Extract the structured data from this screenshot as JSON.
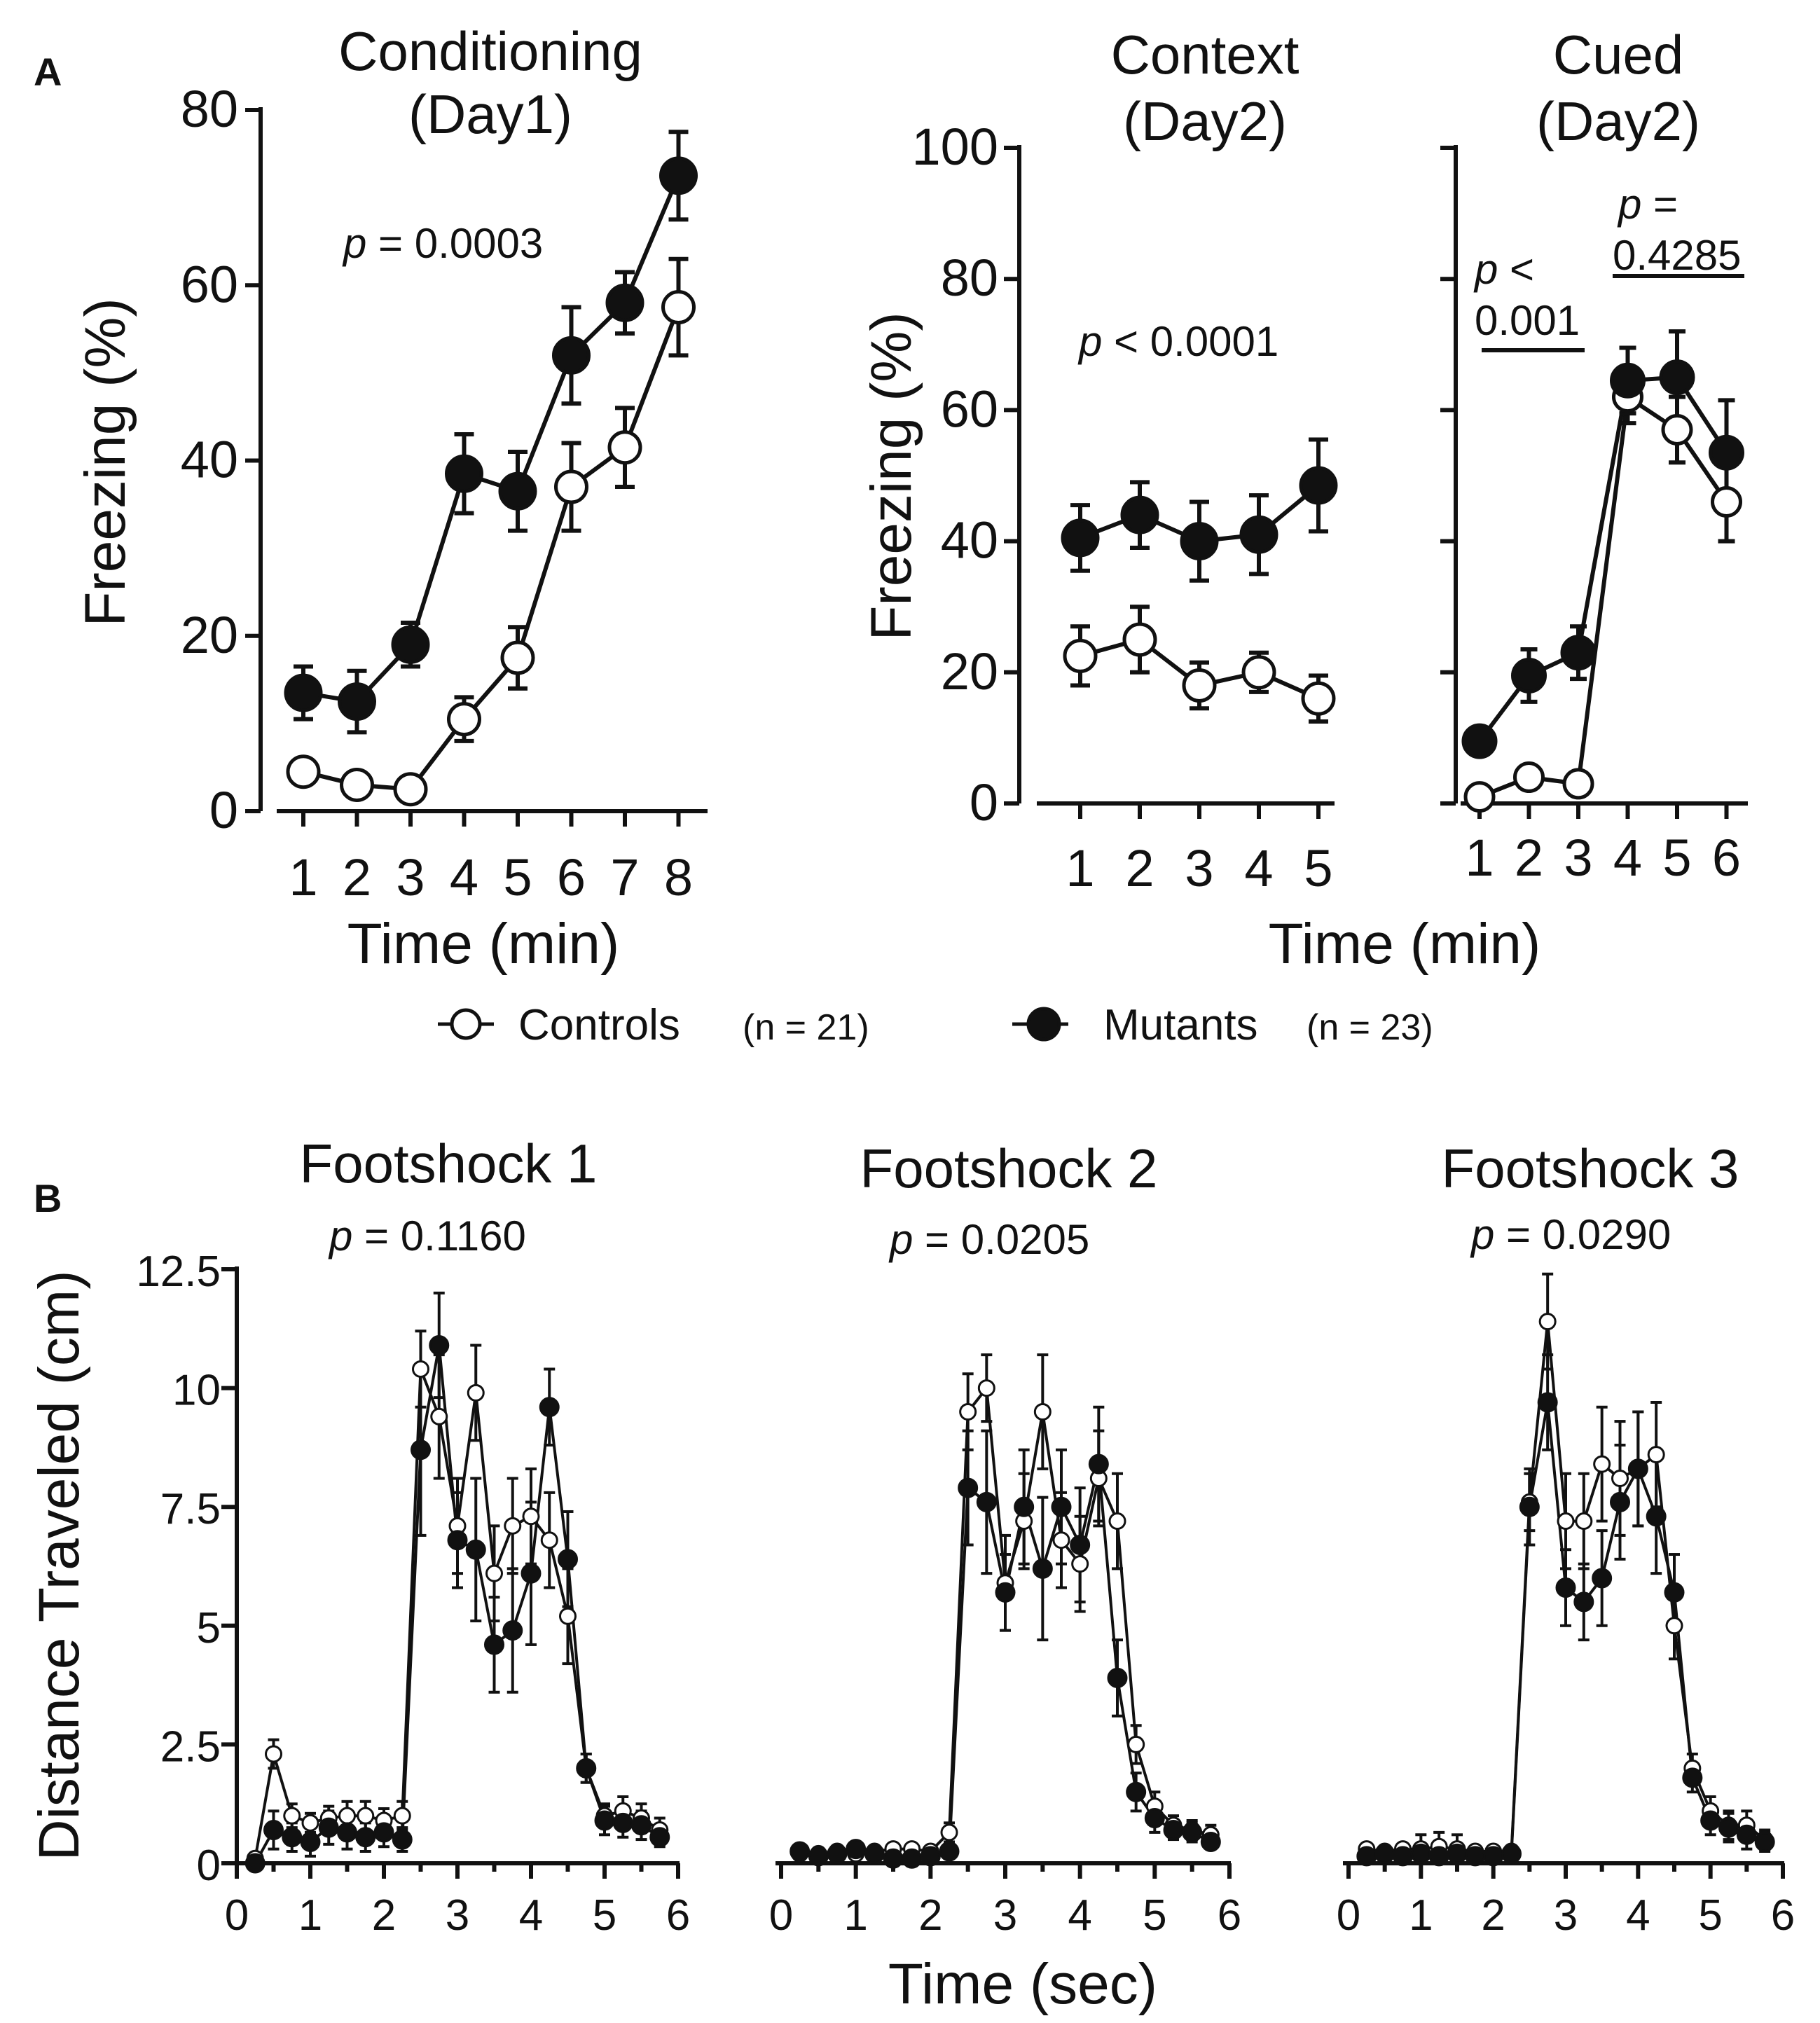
{
  "panel_labels": {
    "a": "A",
    "b": "B"
  },
  "legend": {
    "controls_label": "Controls",
    "controls_n": "(n = 21)",
    "mutants_label": "Mutants",
    "mutants_n": "(n = 23)"
  },
  "shared_labels": {
    "time_min": "Time (min)",
    "time_sec": "Time (sec)",
    "freezing": "Freezing (%)",
    "distance": "Distance Traveled (cm)"
  },
  "colors": {
    "controls_fill": "#ffffff",
    "mutants_fill": "#111111",
    "stroke": "#111111"
  },
  "chart_data": [
    {
      "id": "conditioning",
      "type": "line",
      "title_line1": "Conditioning",
      "title_line2": "(Day1)",
      "p_value": "= 0.0003",
      "p_symbol": "p",
      "xlabel": "Time (min)",
      "ylabel": "Freezing (%)",
      "x": [
        1,
        2,
        3,
        4,
        5,
        6,
        7,
        8
      ],
      "xticks": [
        "1",
        "2",
        "3",
        "4",
        "5",
        "6",
        "7",
        "8"
      ],
      "yticks": [
        "0",
        "20",
        "40",
        "60",
        "80"
      ],
      "ylim": [
        0,
        80
      ],
      "series": [
        {
          "name": "Controls",
          "values": [
            4.5,
            3,
            2.5,
            10.5,
            17.5,
            37,
            41.5,
            57.5
          ],
          "err": [
            1,
            1,
            1,
            2.5,
            3.5,
            5,
            4.5,
            5.5
          ]
        },
        {
          "name": "Mutants",
          "values": [
            13.5,
            12.5,
            19,
            38.5,
            36.5,
            52,
            58,
            72.5
          ],
          "err": [
            3,
            3.5,
            2.5,
            4.5,
            4.5,
            5.5,
            3.5,
            5
          ]
        }
      ]
    },
    {
      "id": "context",
      "type": "line",
      "title_line1": "Context",
      "title_line2": "(Day2)",
      "p_value": "< 0.0001",
      "p_symbol": "p",
      "xlabel": "Time (min)",
      "ylabel": "Freezing (%)",
      "x": [
        1,
        2,
        3,
        4,
        5
      ],
      "xticks": [
        "1",
        "2",
        "3",
        "4",
        "5"
      ],
      "yticks": [
        "0",
        "20",
        "40",
        "60",
        "80",
        "100"
      ],
      "ylim": [
        0,
        100
      ],
      "series": [
        {
          "name": "Controls",
          "values": [
            22.5,
            25,
            18,
            20,
            16
          ],
          "err": [
            4.5,
            5,
            3.5,
            3,
            3.5
          ]
        },
        {
          "name": "Mutants",
          "values": [
            40.5,
            44,
            40,
            41,
            48.5
          ],
          "err": [
            5,
            5,
            6,
            6,
            7
          ]
        }
      ]
    },
    {
      "id": "cued",
      "type": "line",
      "title_line1": "Cued",
      "title_line2": "(Day2)",
      "p_left_line1": "<",
      "p_left_line2": "0.001",
      "p_right_line1": "=",
      "p_right_line2": "0.4285",
      "p_symbol": "p",
      "x": [
        1,
        2,
        3,
        4,
        5,
        6
      ],
      "xticks": [
        "1",
        "2",
        "3",
        "4",
        "5",
        "6"
      ],
      "ylim": [
        0,
        100
      ],
      "series": [
        {
          "name": "Controls",
          "values": [
            1,
            4,
            3,
            62,
            57,
            46
          ],
          "err": [
            0.5,
            1,
            1,
            4,
            5,
            6
          ]
        },
        {
          "name": "Mutants",
          "values": [
            9.5,
            19.5,
            23,
            64.5,
            65,
            53.5
          ],
          "err": [
            2,
            4,
            4,
            5,
            7,
            8
          ]
        }
      ]
    },
    {
      "id": "footshock1",
      "type": "line",
      "title": "Footshock 1",
      "p_value": "= 0.1160",
      "p_symbol": "p",
      "xlim": [
        0,
        6
      ],
      "ylim": [
        0,
        12.5
      ],
      "xticks": [
        "0",
        "1",
        "2",
        "3",
        "4",
        "5",
        "6"
      ],
      "yticks": [
        "0",
        "2.5",
        "5",
        "7.5",
        "10",
        "12.5"
      ],
      "x": [
        0.25,
        0.5,
        0.75,
        1,
        1.25,
        1.5,
        1.75,
        2,
        2.25,
        2.5,
        2.75,
        3,
        3.25,
        3.5,
        3.75,
        4,
        4.25,
        4.5,
        4.75,
        5,
        5.25,
        5.5,
        5.75
      ],
      "series": [
        {
          "name": "Controls",
          "values": [
            0.1,
            2.3,
            1,
            0.85,
            0.95,
            1,
            1,
            0.9,
            1,
            10.4,
            9.4,
            7.1,
            9.9,
            6.1,
            7.1,
            7.3,
            6.8,
            5.2,
            2,
            1,
            1.1,
            0.95,
            0.7
          ],
          "err": [
            0,
            0.3,
            0.25,
            0.2,
            0.25,
            0.3,
            0.3,
            0.25,
            0.3,
            0.8,
            1.3,
            1,
            1,
            1,
            1,
            1,
            1,
            1,
            0.3,
            0.25,
            0.3,
            0.3,
            0.25
          ]
        },
        {
          "name": "Mutants",
          "values": [
            0,
            0.7,
            0.55,
            0.45,
            0.75,
            0.65,
            0.55,
            0.65,
            0.5,
            8.7,
            10.9,
            6.8,
            6.6,
            4.6,
            4.9,
            6.1,
            9.6,
            6.4,
            2,
            0.9,
            0.85,
            0.8,
            0.55
          ],
          "err": [
            0,
            0.4,
            0.3,
            0.3,
            0.35,
            0.35,
            0.3,
            0.3,
            0.25,
            1.8,
            1.1,
            1,
            1.5,
            1,
            1.3,
            1.5,
            0.8,
            1,
            0.3,
            0.3,
            0.3,
            0.3,
            0.2
          ]
        }
      ]
    },
    {
      "id": "footshock2",
      "type": "line",
      "title": "Footshock 2",
      "p_value": "= 0.0205",
      "p_symbol": "p",
      "xlim": [
        0,
        6
      ],
      "ylim": [
        0,
        12.5
      ],
      "xticks": [
        "0",
        "1",
        "2",
        "3",
        "4",
        "5",
        "6"
      ],
      "x": [
        0.25,
        0.5,
        0.75,
        1,
        1.25,
        1.5,
        1.75,
        2,
        2.25,
        2.5,
        2.75,
        3,
        3.25,
        3.5,
        3.75,
        4,
        4.25,
        4.5,
        4.75,
        5,
        5.25,
        5.5,
        5.75
      ],
      "series": [
        {
          "name": "Controls",
          "values": [
            0.2,
            0.2,
            0.25,
            0.2,
            0.25,
            0.3,
            0.3,
            0.25,
            0.65,
            9.5,
            10,
            5.9,
            7.2,
            9.5,
            6.8,
            6.3,
            8.1,
            7.2,
            2.5,
            1.2,
            0.8,
            0.7,
            0.6
          ],
          "err": [
            0.05,
            0.05,
            0.05,
            0.05,
            0.05,
            0.05,
            0.05,
            0.05,
            0.2,
            0.8,
            0.7,
            1,
            1,
            1.2,
            1,
            1,
            1,
            1,
            0.4,
            0.3,
            0.2,
            0.2,
            0.2
          ]
        },
        {
          "name": "Mutants",
          "values": [
            0.25,
            0.15,
            0.2,
            0.3,
            0.2,
            0.1,
            0.1,
            0.15,
            0.25,
            7.9,
            7.6,
            5.7,
            7.5,
            6.2,
            7.5,
            6.7,
            8.4,
            3.9,
            1.5,
            0.95,
            0.7,
            0.65,
            0.45
          ],
          "err": [
            0.05,
            0.05,
            0.05,
            0.05,
            0.05,
            0.05,
            0.05,
            0.05,
            0.1,
            1.2,
            1.5,
            0.8,
            1.2,
            1.5,
            1.2,
            1.2,
            1.2,
            0.8,
            0.4,
            0.3,
            0.2,
            0.2,
            0.15
          ]
        }
      ]
    },
    {
      "id": "footshock3",
      "type": "line",
      "title": "Footshock 3",
      "p_value": "= 0.0290",
      "p_symbol": "p",
      "xlim": [
        0,
        6
      ],
      "ylim": [
        0,
        12.5
      ],
      "xticks": [
        "0",
        "1",
        "2",
        "3",
        "4",
        "5",
        "6"
      ],
      "x": [
        0.25,
        0.5,
        0.75,
        1,
        1.25,
        1.5,
        1.75,
        2,
        2.25,
        2.5,
        2.75,
        3,
        3.25,
        3.5,
        3.75,
        4,
        4.25,
        4.5,
        4.75,
        5,
        5.25,
        5.5,
        5.75
      ],
      "series": [
        {
          "name": "Controls",
          "values": [
            0.3,
            0.25,
            0.3,
            0.3,
            0.35,
            0.3,
            0.25,
            0.25,
            0.25,
            7.6,
            11.4,
            7.2,
            7.2,
            8.4,
            8.1,
            8.3,
            8.6,
            5,
            2,
            1.1,
            0.8,
            0.8,
            0.5
          ],
          "err": [
            0.05,
            0.05,
            0.05,
            0.3,
            0.3,
            0.3,
            0.1,
            0.1,
            0.1,
            0.6,
            1,
            1,
            1,
            1.2,
            1.2,
            1.2,
            1.1,
            0.7,
            0.3,
            0.3,
            0.3,
            0.3,
            0.2
          ]
        },
        {
          "name": "Mutants",
          "values": [
            0.15,
            0.2,
            0.15,
            0.2,
            0.15,
            0.2,
            0.15,
            0.15,
            0.2,
            7.5,
            9.7,
            5.8,
            5.5,
            6,
            7.6,
            8.3,
            7.3,
            5.7,
            1.8,
            0.9,
            0.75,
            0.6,
            0.45
          ],
          "err": [
            0.05,
            0.05,
            0.05,
            0.05,
            0.05,
            0.05,
            0.05,
            0.05,
            0.05,
            0.8,
            1,
            0.8,
            0.8,
            1,
            1.2,
            1.2,
            1.2,
            0.8,
            0.3,
            0.3,
            0.3,
            0.3,
            0.2
          ]
        }
      ]
    }
  ]
}
